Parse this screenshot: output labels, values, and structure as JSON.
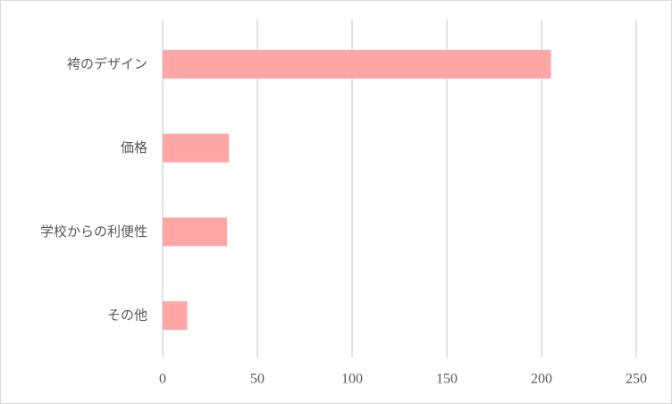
{
  "chart_data": {
    "type": "bar",
    "orientation": "horizontal",
    "categories": [
      "袴のデザイン",
      "価格",
      "学校からの利便性",
      "その他"
    ],
    "values": [
      205,
      35,
      34,
      13
    ],
    "color": "#ffa6a6",
    "xlim": [
      0,
      250
    ],
    "xticks": [
      0,
      50,
      100,
      150,
      200,
      250
    ],
    "grid": true
  }
}
